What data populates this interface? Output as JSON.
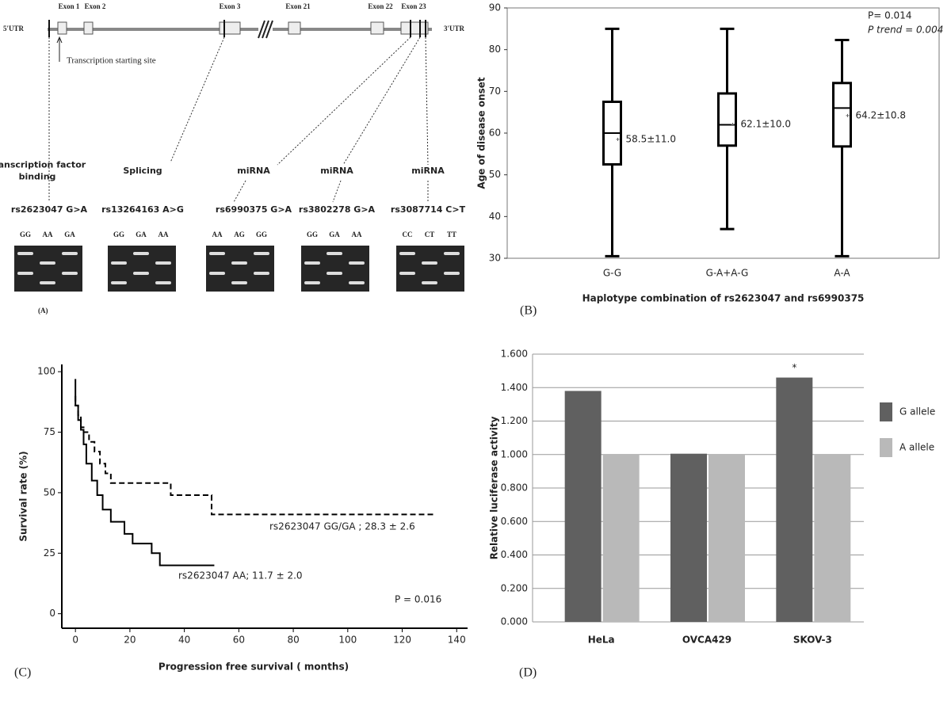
{
  "panel_a": {
    "label": "(A)",
    "utr5": "5'UTR",
    "utr3": "3'UTR",
    "exons": [
      "Exon 1",
      "Exon 2",
      "Exon 3",
      "Exon 21",
      "Exon 22",
      "Exon 23"
    ],
    "tss": "Transcription starting site",
    "snps": [
      {
        "function": [
          "Transcription factor",
          "binding"
        ],
        "name": "rs2623047 G>A",
        "genotypes": [
          "GG",
          "AA",
          "GA"
        ]
      },
      {
        "function": [
          "Splicing"
        ],
        "name": "rs13264163 A>G",
        "genotypes": [
          "GG",
          "GA",
          "AA"
        ]
      },
      {
        "function": [
          "miRNA"
        ],
        "name": "rs6990375 G>A",
        "genotypes": [
          "AA",
          "AG",
          "GG"
        ]
      },
      {
        "function": [
          "miRNA"
        ],
        "name": "rs3802278 G>A",
        "genotypes": [
          "GG",
          "GA",
          "AA"
        ]
      },
      {
        "function": [
          "miRNA"
        ],
        "name": "rs3087714 C>T",
        "genotypes": [
          "CC",
          "CT",
          "TT"
        ]
      }
    ]
  },
  "chart_data": [
    {
      "type": "box",
      "panel_label": "(B)",
      "y_label": "Age of disease onset",
      "x_label": "Haplotype combination of rs2623047 and rs6990375",
      "categories": [
        "G-G",
        "G-A+A-G",
        "A-A"
      ],
      "min": [
        30.5,
        37,
        30.5
      ],
      "q1": [
        52.5,
        57,
        56.8
      ],
      "median": [
        60,
        62,
        66
      ],
      "q3": [
        67.5,
        69.5,
        72
      ],
      "max": [
        85,
        85,
        82.3
      ],
      "mean": [
        58.5,
        62.1,
        64.2
      ],
      "mean_labels": [
        "58.5±11.0",
        "62.1±10.0",
        "64.2±10.8"
      ],
      "annotations": [
        "P= 0.014",
        "P trend = 0.004"
      ],
      "ylim": [
        30,
        90
      ],
      "yticks": [
        30,
        40,
        50,
        60,
        70,
        80,
        90
      ],
      "color": "#000000"
    },
    {
      "type": "line",
      "panel_label": "(C)",
      "y_label": "Survival rate (%)",
      "x_label": "Progression free survival ( months)",
      "series": [
        {
          "x": [
            0,
            0,
            1,
            1,
            2,
            2,
            3,
            3,
            5,
            5,
            7,
            7,
            9,
            9,
            11,
            11,
            13,
            13,
            35,
            35,
            50,
            50,
            132
          ],
          "values": [
            90,
            86,
            86,
            82,
            82,
            77,
            77,
            75,
            75,
            71,
            71,
            67,
            67,
            62,
            62,
            58,
            58,
            54,
            54,
            49,
            49,
            41,
            41
          ],
          "dash": true,
          "label": "rs2623047 GG/GA ; 28.3 ± 2.6"
        },
        {
          "x": [
            0,
            0,
            1,
            1,
            2,
            2,
            3,
            3,
            4,
            4,
            6,
            6,
            8,
            8,
            10,
            10,
            13,
            13,
            18,
            18,
            21,
            21,
            28,
            28,
            31,
            31,
            51
          ],
          "values": [
            97,
            86,
            86,
            80,
            80,
            76,
            76,
            70,
            70,
            62,
            62,
            55,
            55,
            49,
            49,
            43,
            43,
            38,
            38,
            33,
            33,
            29,
            29,
            25,
            25,
            20,
            20
          ],
          "dash": false,
          "label": "rs2623047 AA; 11.7 ± 2.0"
        }
      ],
      "annotation": "P = 0.016",
      "color": "#000000",
      "xlim": [
        -5,
        144
      ],
      "xticks": [
        0,
        20,
        40,
        60,
        80,
        100,
        120,
        140
      ],
      "ylim": [
        -6,
        103
      ],
      "yticks": [
        0,
        25,
        50,
        75,
        100
      ]
    },
    {
      "type": "bar",
      "panel_label": "(D)",
      "y_label": "Relative luciferase activity",
      "categories": [
        "HeLa",
        "OVCA429",
        "SKOV-3"
      ],
      "series": [
        {
          "name": "G allele",
          "color": "#606060",
          "values": [
            1.38,
            1.005,
            1.46
          ]
        },
        {
          "name": "A allele",
          "color": "#b9b9b9",
          "values": [
            1.0,
            1.0,
            1.0
          ]
        }
      ],
      "annotation": "*",
      "grid": true,
      "legend": "right",
      "ylim": [
        0,
        1.6
      ],
      "yticks": [
        {
          "value": 0,
          "label": "0.000"
        },
        {
          "value": 0.2,
          "label": "0.200"
        },
        {
          "value": 0.4,
          "label": "0.400"
        },
        {
          "value": 0.6,
          "label": "0.600"
        },
        {
          "value": 0.8,
          "label": "0.800"
        },
        {
          "value": 1.0,
          "label": "1.000"
        },
        {
          "value": 1.2,
          "label": "1.200"
        },
        {
          "value": 1.4,
          "label": "1.400"
        },
        {
          "value": 1.6,
          "label": "1.600"
        }
      ]
    }
  ]
}
